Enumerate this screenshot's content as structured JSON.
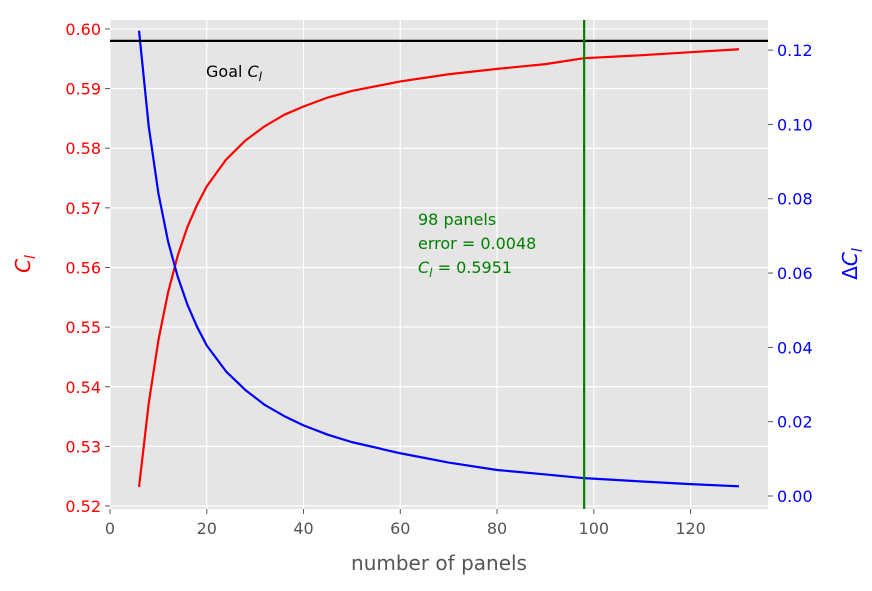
{
  "chart_data": {
    "type": "line",
    "title": "",
    "xlabel": "number of panels",
    "ylabel": "C_l",
    "ylabel_right": "ΔC_l",
    "xlim": [
      0,
      136
    ],
    "ylim": [
      0.5195,
      0.6015
    ],
    "ylim_right": [
      -0.0035,
      0.1281
    ],
    "x_ticks": [
      0,
      20,
      40,
      60,
      80,
      100,
      120
    ],
    "y_ticks": [
      0.52,
      0.53,
      0.54,
      0.55,
      0.56,
      0.57,
      0.58,
      0.59,
      0.6
    ],
    "y_ticks_right": [
      0.0,
      0.02,
      0.04,
      0.06,
      0.08,
      0.1,
      0.12
    ],
    "grid": true,
    "background": "#e5e5e5",
    "goal_cl": 0.598,
    "selected_panels": 98,
    "series": [
      {
        "axis": "left",
        "color": "#ff0000",
        "x": [
          6,
          8,
          10,
          12,
          14,
          16,
          18,
          20,
          24,
          28,
          32,
          36,
          40,
          45,
          50,
          60,
          70,
          80,
          90,
          98,
          110,
          120,
          130
        ],
        "y": [
          0.5232,
          0.5372,
          0.5478,
          0.5558,
          0.562,
          0.5668,
          0.5705,
          0.5736,
          0.5781,
          0.5813,
          0.5837,
          0.5856,
          0.587,
          0.5885,
          0.5896,
          0.5912,
          0.5924,
          0.5933,
          0.5941,
          0.5951,
          0.5956,
          0.5961,
          0.5966
        ]
      },
      {
        "axis": "right",
        "color": "#0000ff",
        "x": [
          6,
          8,
          10,
          12,
          14,
          16,
          18,
          20,
          24,
          28,
          32,
          36,
          40,
          45,
          50,
          60,
          70,
          80,
          90,
          98,
          110,
          120,
          130
        ],
        "y": [
          0.1252,
          0.0995,
          0.0815,
          0.0685,
          0.059,
          0.0515,
          0.0455,
          0.0405,
          0.0335,
          0.0285,
          0.0245,
          0.0215,
          0.019,
          0.0165,
          0.0145,
          0.0115,
          0.009,
          0.007,
          0.0058,
          0.0048,
          0.0039,
          0.0032,
          0.0026
        ]
      }
    ],
    "annotations": {
      "goal_label": "Goal",
      "goal_symbol": "C",
      "goal_sub": "l",
      "panels_line1": "98 panels",
      "panels_line2": "error = 0.0048",
      "panels_line3_symbol": "C",
      "panels_line3_sub": "l",
      "panels_line3_value": " = 0.5951"
    },
    "colors": {
      "left_axis": "#ff0000",
      "right_axis": "#0000ff",
      "goal_line": "#000000",
      "selected_line": "#008000",
      "annotation": "#008000",
      "xaxis": "#555555"
    }
  }
}
